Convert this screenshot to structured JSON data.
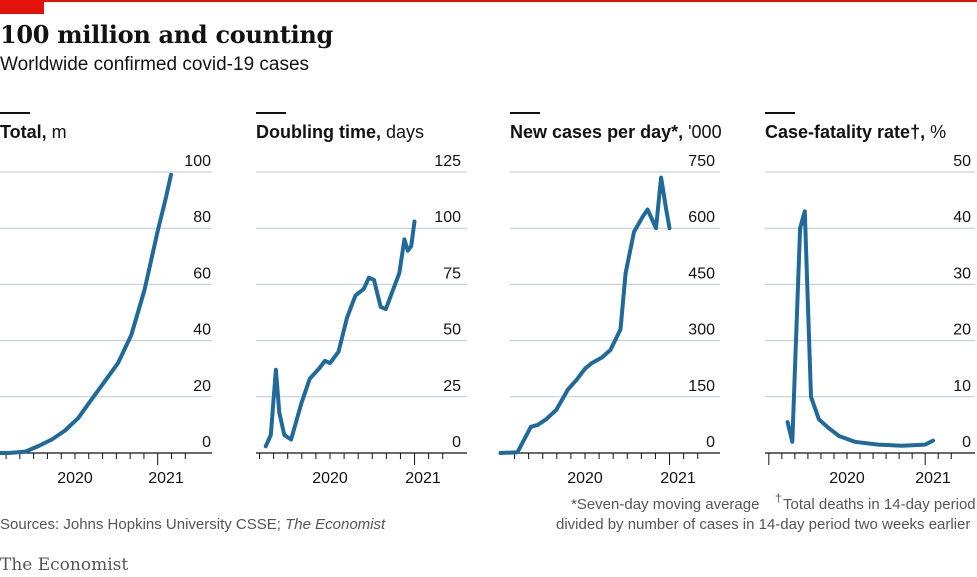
{
  "header": {
    "title": "100 million and counting",
    "subtitle": "Worldwide confirmed covid-19 cases"
  },
  "colors": {
    "line": "#1f6a9a",
    "grid": "#b8c9d6",
    "accent": "#e3120b",
    "axis": "#121212"
  },
  "footnotes": {
    "seven_day": "*Seven-day moving average",
    "dagger_mark": "†",
    "deaths_line1": "Total deaths in 14-day period",
    "deaths_line2": "divided by number of cases in 14-day period two weeks earlier"
  },
  "sources": {
    "prefix": "Sources: Johns Hopkins University CSSE; ",
    "italic": "The Economist"
  },
  "brand": "The Economist",
  "chart_data": [
    {
      "type": "line",
      "title": "Total,",
      "unit": " m",
      "ylim": [
        0,
        100
      ],
      "yticks": [
        0,
        20,
        40,
        60,
        80,
        100
      ],
      "xticks": [
        "2020",
        "2021"
      ],
      "series": [
        {
          "values": [
            [
              2020.0,
              0
            ],
            [
              2020.1,
              0.01
            ],
            [
              2020.2,
              0.5
            ],
            [
              2020.28,
              2.5
            ],
            [
              2020.36,
              4.8
            ],
            [
              2020.44,
              8
            ],
            [
              2020.52,
              12.5
            ],
            [
              2020.6,
              19
            ],
            [
              2020.68,
              25.5
            ],
            [
              2020.76,
              32
            ],
            [
              2020.84,
              42
            ],
            [
              2020.92,
              58
            ],
            [
              2021.0,
              79
            ],
            [
              2021.05,
              91
            ],
            [
              2021.08,
              99
            ]
          ]
        }
      ]
    },
    {
      "type": "line",
      "title": "Doubling time,",
      "unit": " days",
      "ylim": [
        0,
        125
      ],
      "yticks": [
        0,
        25,
        50,
        75,
        100,
        125
      ],
      "xticks": [
        "2020",
        "2021"
      ],
      "series": [
        {
          "values": [
            [
              2020.12,
              3
            ],
            [
              2020.15,
              8
            ],
            [
              2020.18,
              37
            ],
            [
              2020.2,
              18
            ],
            [
              2020.23,
              8
            ],
            [
              2020.27,
              6
            ],
            [
              2020.33,
              22
            ],
            [
              2020.38,
              33
            ],
            [
              2020.44,
              38
            ],
            [
              2020.47,
              41
            ],
            [
              2020.5,
              40
            ],
            [
              2020.55,
              45
            ],
            [
              2020.6,
              60
            ],
            [
              2020.65,
              70
            ],
            [
              2020.7,
              73
            ],
            [
              2020.73,
              78
            ],
            [
              2020.76,
              77
            ],
            [
              2020.78,
              71
            ],
            [
              2020.8,
              65
            ],
            [
              2020.83,
              64
            ],
            [
              2020.87,
              72
            ],
            [
              2020.91,
              80
            ],
            [
              2020.94,
              95
            ],
            [
              2020.96,
              90
            ],
            [
              2020.98,
              92
            ],
            [
              2021.0,
              103
            ]
          ]
        }
      ]
    },
    {
      "type": "line",
      "title": "New cases per day*,",
      "unit": " '000",
      "ylim": [
        0,
        750
      ],
      "yticks": [
        0,
        150,
        300,
        450,
        600,
        750
      ],
      "xticks": [
        "2020",
        "2021"
      ],
      "series": [
        {
          "values": [
            [
              2020.0,
              0
            ],
            [
              2020.1,
              2
            ],
            [
              2020.18,
              70
            ],
            [
              2020.22,
              75
            ],
            [
              2020.27,
              90
            ],
            [
              2020.33,
              115
            ],
            [
              2020.4,
              170
            ],
            [
              2020.45,
              195
            ],
            [
              2020.5,
              225
            ],
            [
              2020.54,
              240
            ],
            [
              2020.6,
              255
            ],
            [
              2020.65,
              275
            ],
            [
              2020.71,
              330
            ],
            [
              2020.74,
              480
            ],
            [
              2020.79,
              590
            ],
            [
              2020.84,
              630
            ],
            [
              2020.87,
              650
            ],
            [
              2020.92,
              600
            ],
            [
              2020.95,
              735
            ],
            [
              2020.98,
              650
            ],
            [
              2021.0,
              600
            ]
          ]
        }
      ]
    },
    {
      "type": "line",
      "title": "Case-fatality rate†,",
      "unit": " %",
      "ylim": [
        0,
        50
      ],
      "yticks": [
        0,
        10,
        20,
        30,
        40,
        50
      ],
      "xticks": [
        "2020",
        "2021"
      ],
      "series": [
        {
          "values": [
            [
              2020.12,
              5.5
            ],
            [
              2020.15,
              2
            ],
            [
              2020.2,
              40
            ],
            [
              2020.23,
              43
            ],
            [
              2020.27,
              10
            ],
            [
              2020.32,
              6
            ],
            [
              2020.38,
              4.5
            ],
            [
              2020.45,
              3
            ],
            [
              2020.55,
              2
            ],
            [
              2020.7,
              1.5
            ],
            [
              2020.85,
              1.3
            ],
            [
              2021.0,
              1.5
            ],
            [
              2021.05,
              2.2
            ]
          ]
        }
      ]
    }
  ]
}
